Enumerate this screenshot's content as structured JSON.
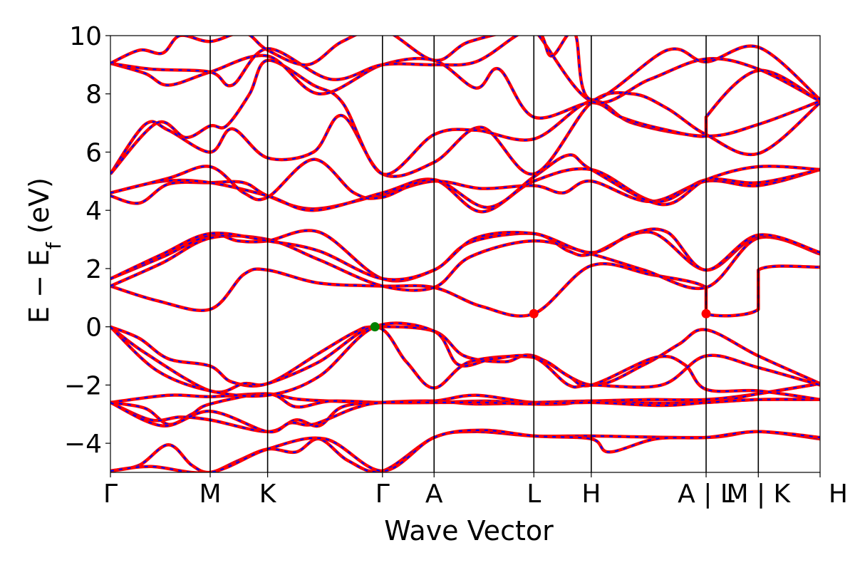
{
  "chart_data": {
    "type": "line",
    "title": "",
    "xlabel": "Wave Vector",
    "ylabel_parts": [
      "E",
      " − ",
      "E",
      "f",
      " (eV)"
    ],
    "ylim": [
      -5,
      10
    ],
    "yticks": [
      -4,
      -2,
      0,
      2,
      4,
      6,
      8,
      10
    ],
    "ytick_labels": [
      "−4",
      "−2",
      "0",
      "2",
      "4",
      "6",
      "8",
      "10"
    ],
    "xlim": [
      0,
      12.235
    ],
    "kpoints": [
      {
        "label": "Γ",
        "x": 0.0
      },
      {
        "label": "M",
        "x": 1.72
      },
      {
        "label": "K",
        "x": 2.71
      },
      {
        "label": "Γ",
        "x": 4.69
      },
      {
        "label": "A",
        "x": 5.58
      },
      {
        "label": "L",
        "x": 7.3
      },
      {
        "label": "H",
        "x": 8.29
      },
      {
        "label": "A | L",
        "x": 10.27
      },
      {
        "label": "M | K",
        "x": 11.17
      },
      {
        "label": "H",
        "x": 12.235
      }
    ],
    "line_colors": {
      "band_a": "#ff0000",
      "band_b": "#0000ff"
    },
    "grid": false,
    "legend": "none",
    "markers": [
      {
        "x": 4.56,
        "y": 0.0,
        "color": "#008000"
      },
      {
        "x": 7.3,
        "y": 0.45,
        "color": "#ff0000"
      },
      {
        "x": 10.27,
        "y": 0.45,
        "color": "#ff0000"
      }
    ],
    "bands": [
      [
        [
          0,
          -4.95
        ],
        [
          0.5,
          -4.75
        ],
        [
          1.0,
          -4.05
        ],
        [
          1.4,
          -4.75
        ],
        [
          1.72,
          -5.0
        ],
        [
          2.2,
          -4.6
        ],
        [
          2.71,
          -4.2
        ],
        [
          3.2,
          -4.3
        ],
        [
          3.6,
          -3.85
        ],
        [
          4.1,
          -4.6
        ],
        [
          4.69,
          -4.95
        ],
        [
          5.58,
          -3.8
        ],
        [
          6.3,
          -3.6
        ],
        [
          7.3,
          -3.75
        ],
        [
          8.29,
          -3.75
        ],
        [
          10.27,
          -3.8
        ],
        [
          11.17,
          -3.6
        ],
        [
          12.235,
          -3.85
        ]
      ],
      [
        [
          0,
          -4.95
        ],
        [
          0.7,
          -4.8
        ],
        [
          1.72,
          -5.0
        ],
        [
          2.71,
          -4.2
        ],
        [
          3.7,
          -3.85
        ],
        [
          4.69,
          -4.95
        ],
        [
          5.58,
          -3.8
        ],
        [
          6.4,
          -3.55
        ],
        [
          7.3,
          -3.75
        ],
        [
          8.29,
          -3.85
        ],
        [
          8.6,
          -4.3
        ],
        [
          9.4,
          -3.85
        ],
        [
          10.27,
          -3.8
        ],
        [
          11.17,
          -3.6
        ],
        [
          12.235,
          -3.8
        ]
      ],
      [
        [
          0,
          -2.6
        ],
        [
          1.0,
          -2.35
        ],
        [
          1.72,
          -2.4
        ],
        [
          2.71,
          -2.3
        ],
        [
          3.3,
          -2.5
        ],
        [
          4.69,
          -2.6
        ],
        [
          5.58,
          -2.55
        ],
        [
          6.3,
          -2.35
        ],
        [
          7.3,
          -2.6
        ],
        [
          8.29,
          -2.55
        ],
        [
          9.3,
          -2.5
        ],
        [
          10.27,
          -2.5
        ],
        [
          11.17,
          -2.3
        ],
        [
          12.235,
          -1.95
        ]
      ],
      [
        [
          0,
          -2.6
        ],
        [
          0.6,
          -2.8
        ],
        [
          1.0,
          -3.35
        ],
        [
          1.4,
          -3.0
        ],
        [
          1.72,
          -2.65
        ],
        [
          2.71,
          -2.3
        ],
        [
          3.2,
          -2.75
        ],
        [
          3.8,
          -2.55
        ],
        [
          4.69,
          -2.6
        ],
        [
          5.58,
          -2.6
        ],
        [
          6.5,
          -2.55
        ],
        [
          7.3,
          -2.65
        ],
        [
          7.8,
          -2.65
        ],
        [
          8.29,
          -2.55
        ],
        [
          9.3,
          -2.65
        ],
        [
          10.27,
          -2.6
        ],
        [
          11.17,
          -2.5
        ],
        [
          12.235,
          -2.5
        ]
      ],
      [
        [
          0,
          -2.6
        ],
        [
          0.7,
          -3.2
        ],
        [
          1.2,
          -3.1
        ],
        [
          1.72,
          -3.2
        ],
        [
          2.71,
          -3.6
        ],
        [
          3.2,
          -3.2
        ],
        [
          3.6,
          -3.4
        ],
        [
          4.0,
          -2.75
        ],
        [
          4.69,
          -2.6
        ],
        [
          5.58,
          -2.55
        ],
        [
          6.3,
          -2.65
        ],
        [
          7.3,
          -2.6
        ],
        [
          8.29,
          -2.55
        ],
        [
          8.8,
          -2.6
        ],
        [
          10.27,
          -2.6
        ],
        [
          11.17,
          -2.3
        ],
        [
          12.235,
          -1.95
        ]
      ],
      [
        [
          0,
          -2.6
        ],
        [
          0.9,
          -3.4
        ],
        [
          1.72,
          -2.9
        ],
        [
          2.71,
          -3.6
        ],
        [
          3.1,
          -3.3
        ],
        [
          3.5,
          -3.35
        ],
        [
          4.2,
          -2.8
        ],
        [
          4.69,
          -2.6
        ],
        [
          5.58,
          -2.6
        ],
        [
          6.4,
          -2.6
        ],
        [
          7.3,
          -2.65
        ],
        [
          8.29,
          -2.6
        ],
        [
          9.5,
          -2.7
        ],
        [
          10.27,
          -2.6
        ],
        [
          11.17,
          -2.5
        ],
        [
          12.235,
          -2.5
        ]
      ],
      [
        [
          0,
          0.0
        ],
        [
          0.5,
          -0.4
        ],
        [
          1.0,
          -1.1
        ],
        [
          1.72,
          -1.35
        ],
        [
          2.1,
          -1.9
        ],
        [
          2.71,
          -1.95
        ],
        [
          3.6,
          -0.9
        ],
        [
          4.2,
          -0.2
        ],
        [
          4.56,
          0.0
        ],
        [
          5.58,
          -0.15
        ],
        [
          6.1,
          -1.0
        ],
        [
          6.8,
          -1.2
        ],
        [
          7.3,
          -1.0
        ],
        [
          8.29,
          -2.0
        ],
        [
          9.2,
          -1.3
        ],
        [
          9.8,
          -0.6
        ],
        [
          10.27,
          -0.1
        ],
        [
          11.17,
          -1.0
        ],
        [
          12.235,
          -1.95
        ]
      ],
      [
        [
          0,
          0.0
        ],
        [
          0.6,
          -0.9
        ],
        [
          1.72,
          -2.2
        ],
        [
          2.3,
          -1.95
        ],
        [
          2.71,
          -1.95
        ],
        [
          3.6,
          -1.2
        ],
        [
          4.56,
          0.0
        ],
        [
          5.1,
          -1.2
        ],
        [
          5.58,
          -2.1
        ],
        [
          6.2,
          -1.2
        ],
        [
          7.3,
          -1.05
        ],
        [
          7.9,
          -1.7
        ],
        [
          8.29,
          -2.0
        ],
        [
          9.4,
          -1.05
        ],
        [
          9.9,
          -1.3
        ],
        [
          10.27,
          -2.15
        ],
        [
          11.17,
          -2.2
        ],
        [
          12.235,
          -2.5
        ]
      ],
      [
        [
          0,
          0.0
        ],
        [
          0.8,
          -1.5
        ],
        [
          1.72,
          -2.2
        ],
        [
          2.71,
          -2.35
        ],
        [
          3.6,
          -1.7
        ],
        [
          4.56,
          0.0
        ],
        [
          5.58,
          -0.15
        ],
        [
          6.0,
          -1.3
        ],
        [
          6.6,
          -1.1
        ],
        [
          7.3,
          -1.05
        ],
        [
          7.9,
          -2.0
        ],
        [
          8.29,
          -2.0
        ],
        [
          9.5,
          -2.0
        ],
        [
          10.27,
          -1.0
        ],
        [
          11.17,
          -1.4
        ],
        [
          12.235,
          -2.0
        ]
      ],
      [
        [
          0,
          1.4
        ],
        [
          0.8,
          0.9
        ],
        [
          1.72,
          0.6
        ],
        [
          2.3,
          1.8
        ],
        [
          2.71,
          1.95
        ],
        [
          3.6,
          1.5
        ],
        [
          4.69,
          1.4
        ],
        [
          5.58,
          1.35
        ],
        [
          6.4,
          0.7
        ],
        [
          7.3,
          0.45
        ],
        [
          8.29,
          2.1
        ],
        [
          9.3,
          1.8
        ],
        [
          10.27,
          1.35
        ],
        [
          10.27,
          0.45
        ],
        [
          11.17,
          0.6
        ],
        [
          11.17,
          1.95
        ],
        [
          12.235,
          2.05
        ]
      ],
      [
        [
          0,
          1.4
        ],
        [
          0.9,
          2.2
        ],
        [
          1.72,
          3.05
        ],
        [
          2.71,
          3.0
        ],
        [
          3.6,
          2.3
        ],
        [
          4.69,
          1.4
        ],
        [
          5.58,
          1.35
        ],
        [
          6.2,
          2.4
        ],
        [
          7.3,
          2.95
        ],
        [
          8.29,
          2.5
        ],
        [
          9.2,
          1.95
        ],
        [
          10.27,
          1.35
        ],
        [
          11.17,
          3.05
        ],
        [
          12.235,
          2.5
        ]
      ],
      [
        [
          0,
          1.65
        ],
        [
          0.9,
          2.4
        ],
        [
          1.72,
          3.15
        ],
        [
          2.2,
          2.95
        ],
        [
          2.71,
          2.95
        ],
        [
          3.6,
          3.25
        ],
        [
          4.69,
          1.65
        ],
        [
          5.58,
          1.95
        ],
        [
          6.2,
          2.9
        ],
        [
          7.3,
          3.2
        ],
        [
          7.9,
          2.6
        ],
        [
          8.29,
          2.5
        ],
        [
          9.3,
          3.25
        ],
        [
          10.27,
          1.95
        ],
        [
          11.17,
          3.1
        ],
        [
          12.235,
          2.55
        ]
      ],
      [
        [
          0,
          1.65
        ],
        [
          0.9,
          2.5
        ],
        [
          1.72,
          3.2
        ],
        [
          2.71,
          2.95
        ],
        [
          3.6,
          2.6
        ],
        [
          4.69,
          1.65
        ],
        [
          5.58,
          1.95
        ],
        [
          6.3,
          3.05
        ],
        [
          7.3,
          3.2
        ],
        [
          8.29,
          2.55
        ],
        [
          9.0,
          3.2
        ],
        [
          9.6,
          3.25
        ],
        [
          10.27,
          1.95
        ],
        [
          11.17,
          3.15
        ],
        [
          12.235,
          2.55
        ]
      ],
      [
        [
          0,
          4.5
        ],
        [
          0.5,
          4.25
        ],
        [
          1.0,
          4.9
        ],
        [
          1.72,
          4.95
        ],
        [
          2.3,
          4.95
        ],
        [
          2.71,
          4.5
        ],
        [
          3.5,
          4.05
        ],
        [
          4.69,
          4.55
        ],
        [
          5.58,
          5.0
        ],
        [
          6.4,
          4.75
        ],
        [
          7.3,
          4.85
        ],
        [
          7.8,
          4.6
        ],
        [
          8.29,
          5.0
        ],
        [
          9.3,
          4.3
        ],
        [
          10.27,
          5.0
        ],
        [
          11.17,
          4.85
        ],
        [
          12.235,
          5.4
        ]
      ],
      [
        [
          0,
          4.6
        ],
        [
          0.9,
          5.0
        ],
        [
          1.72,
          4.95
        ],
        [
          2.71,
          4.5
        ],
        [
          3.5,
          4.0
        ],
        [
          4.69,
          4.6
        ],
        [
          5.58,
          5.05
        ],
        [
          6.4,
          3.95
        ],
        [
          7.3,
          5.0
        ],
        [
          8.29,
          5.4
        ],
        [
          9.4,
          4.3
        ],
        [
          10.27,
          5.05
        ],
        [
          11.17,
          4.95
        ],
        [
          12.235,
          5.4
        ]
      ],
      [
        [
          0,
          4.6
        ],
        [
          1.0,
          5.1
        ],
        [
          1.72,
          5.5
        ],
        [
          2.3,
          4.6
        ],
        [
          2.71,
          4.45
        ],
        [
          3.5,
          5.75
        ],
        [
          4.2,
          4.6
        ],
        [
          4.69,
          4.45
        ],
        [
          5.58,
          5.05
        ],
        [
          6.5,
          4.1
        ],
        [
          7.3,
          5.15
        ],
        [
          7.9,
          5.9
        ],
        [
          8.29,
          5.4
        ],
        [
          9.5,
          4.2
        ],
        [
          10.27,
          5.05
        ],
        [
          11.17,
          5.5
        ],
        [
          12.235,
          5.4
        ]
      ],
      [
        [
          0,
          5.25
        ],
        [
          0.6,
          6.95
        ],
        [
          1.0,
          6.75
        ],
        [
          1.72,
          6.0
        ],
        [
          2.1,
          6.8
        ],
        [
          2.71,
          5.8
        ],
        [
          3.5,
          6.0
        ],
        [
          4.0,
          7.25
        ],
        [
          4.69,
          5.25
        ],
        [
          5.58,
          5.65
        ],
        [
          6.4,
          6.85
        ],
        [
          7.3,
          5.25
        ],
        [
          8.29,
          7.7
        ],
        [
          9.0,
          8.0
        ],
        [
          9.6,
          7.5
        ],
        [
          10.27,
          6.6
        ],
        [
          11.17,
          5.95
        ],
        [
          12.235,
          7.7
        ]
      ],
      [
        [
          0,
          5.25
        ],
        [
          0.8,
          7.0
        ],
        [
          1.3,
          6.5
        ],
        [
          1.72,
          6.9
        ],
        [
          2.0,
          6.9
        ],
        [
          2.4,
          8.0
        ],
        [
          2.71,
          9.15
        ],
        [
          3.5,
          8.3
        ],
        [
          4.0,
          7.7
        ],
        [
          4.69,
          5.25
        ],
        [
          5.58,
          6.6
        ],
        [
          6.3,
          6.75
        ],
        [
          7.3,
          6.45
        ],
        [
          8.29,
          7.75
        ],
        [
          9.0,
          7.0
        ],
        [
          10.27,
          6.55
        ],
        [
          11.17,
          6.95
        ],
        [
          12.235,
          7.75
        ]
      ],
      [
        [
          0,
          9.05
        ],
        [
          0.6,
          8.7
        ],
        [
          1.0,
          8.3
        ],
        [
          1.72,
          8.75
        ],
        [
          2.71,
          9.3
        ],
        [
          3.6,
          8.0
        ],
        [
          4.69,
          9.0
        ],
        [
          5.58,
          9.15
        ],
        [
          6.3,
          8.2
        ],
        [
          6.7,
          8.85
        ],
        [
          7.3,
          7.2
        ],
        [
          8.29,
          7.7
        ],
        [
          8.8,
          7.2
        ],
        [
          9.5,
          6.8
        ],
        [
          10.27,
          6.55
        ],
        [
          10.27,
          7.2
        ],
        [
          11.17,
          8.8
        ],
        [
          12.235,
          7.75
        ]
      ],
      [
        [
          0,
          9.05
        ],
        [
          0.7,
          8.85
        ],
        [
          1.72,
          8.75
        ],
        [
          2.1,
          8.3
        ],
        [
          2.71,
          9.55
        ],
        [
          3.8,
          8.5
        ],
        [
          4.69,
          9.0
        ],
        [
          5.58,
          9.0
        ],
        [
          6.3,
          9.1
        ],
        [
          7.0,
          10.0
        ],
        [
          7.3,
          10.2
        ],
        [
          8.29,
          7.75
        ],
        [
          9.3,
          8.5
        ],
        [
          10.27,
          9.2
        ],
        [
          11.17,
          8.85
        ],
        [
          12.235,
          7.75
        ]
      ],
      [
        [
          0,
          9.05
        ],
        [
          0.5,
          9.5
        ],
        [
          0.9,
          9.4
        ],
        [
          1.2,
          10.0
        ],
        [
          1.72,
          9.8
        ],
        [
          2.3,
          10.1
        ],
        [
          2.71,
          9.5
        ],
        [
          3.4,
          9.0
        ],
        [
          4.0,
          9.8
        ],
        [
          4.69,
          10.2
        ],
        [
          5.58,
          9.15
        ],
        [
          6.2,
          9.8
        ],
        [
          7.3,
          10.2
        ],
        [
          7.6,
          9.3
        ],
        [
          8.0,
          10.1
        ],
        [
          8.29,
          7.8
        ],
        [
          9.6,
          9.5
        ],
        [
          10.27,
          9.1
        ],
        [
          11.17,
          9.6
        ],
        [
          12.235,
          7.8
        ]
      ]
    ]
  }
}
